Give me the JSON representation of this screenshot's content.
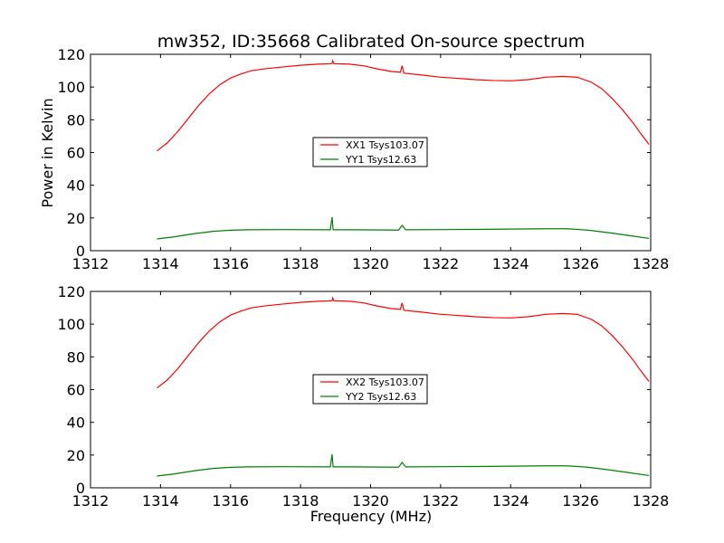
{
  "title": "mw352, ID:35668 Calibrated On-source spectrum",
  "xlabel": "Frequency (MHz)",
  "ylabel": "Power in Kelvin",
  "colors": {
    "red": "#ff0000",
    "green": "#008000"
  },
  "chart_data": [
    {
      "type": "line",
      "xlim": [
        1312,
        1328
      ],
      "ylim": [
        0,
        120
      ],
      "xticks": [
        "1312",
        "1314",
        "1316",
        "1318",
        "1320",
        "1322",
        "1324",
        "1326",
        "1328"
      ],
      "yticks": [
        "0",
        "20",
        "40",
        "60",
        "80",
        "100",
        "120"
      ],
      "legend_position": "center",
      "series": [
        {
          "name": "XX1 Tsys103.07",
          "color": "red",
          "points": [
            [
              1313.9,
              61
            ],
            [
              1314.2,
              66
            ],
            [
              1314.5,
              73
            ],
            [
              1314.8,
              81
            ],
            [
              1315.1,
              89
            ],
            [
              1315.4,
              96
            ],
            [
              1315.7,
              101.5
            ],
            [
              1316.0,
              105.5
            ],
            [
              1316.3,
              108
            ],
            [
              1316.6,
              110
            ],
            [
              1317.0,
              111.2
            ],
            [
              1317.5,
              112.3
            ],
            [
              1318.0,
              113.3
            ],
            [
              1318.5,
              114
            ],
            [
              1318.9,
              114.3
            ],
            [
              1318.92,
              116
            ],
            [
              1318.95,
              114.3
            ],
            [
              1319.4,
              114
            ],
            [
              1319.8,
              113
            ],
            [
              1320.2,
              111
            ],
            [
              1320.6,
              109.5
            ],
            [
              1320.85,
              109
            ],
            [
              1320.9,
              113
            ],
            [
              1320.95,
              108.5
            ],
            [
              1321.4,
              107.5
            ],
            [
              1322.0,
              106
            ],
            [
              1322.5,
              105.3
            ],
            [
              1323.0,
              104.5
            ],
            [
              1323.5,
              104
            ],
            [
              1324.0,
              103.8
            ],
            [
              1324.5,
              104.5
            ],
            [
              1325.0,
              106
            ],
            [
              1325.5,
              106.5
            ],
            [
              1325.9,
              106
            ],
            [
              1326.3,
              103
            ],
            [
              1326.6,
              99
            ],
            [
              1326.9,
              93
            ],
            [
              1327.2,
              86
            ],
            [
              1327.5,
              78
            ],
            [
              1327.7,
              72
            ],
            [
              1327.95,
              65
            ]
          ]
        },
        {
          "name": "YY1 Tsys12.63",
          "color": "green",
          "points": [
            [
              1313.9,
              7.2
            ],
            [
              1314.4,
              8.5
            ],
            [
              1315.0,
              10.5
            ],
            [
              1315.5,
              11.8
            ],
            [
              1316.0,
              12.5
            ],
            [
              1316.5,
              12.8
            ],
            [
              1317.5,
              12.9
            ],
            [
              1318.85,
              12.8
            ],
            [
              1318.9,
              20.5
            ],
            [
              1318.93,
              12.8
            ],
            [
              1319.5,
              12.8
            ],
            [
              1320.8,
              12.6
            ],
            [
              1320.9,
              15.5
            ],
            [
              1321.0,
              12.8
            ],
            [
              1322.0,
              12.9
            ],
            [
              1323.0,
              13
            ],
            [
              1324.0,
              13.2
            ],
            [
              1325.0,
              13.4
            ],
            [
              1325.6,
              13.4
            ],
            [
              1326.2,
              12.6
            ],
            [
              1326.8,
              11
            ],
            [
              1327.4,
              9.2
            ],
            [
              1327.95,
              7.5
            ]
          ]
        }
      ]
    },
    {
      "type": "line",
      "xlim": [
        1312,
        1328
      ],
      "ylim": [
        0,
        120
      ],
      "xticks": [
        "1312",
        "1314",
        "1316",
        "1318",
        "1320",
        "1322",
        "1324",
        "1326",
        "1328"
      ],
      "yticks": [
        "0",
        "20",
        "40",
        "60",
        "80",
        "100",
        "120"
      ],
      "legend_position": "center",
      "series": [
        {
          "name": "XX2 Tsys103.07",
          "color": "red",
          "points": [
            [
              1313.9,
              61
            ],
            [
              1314.2,
              66
            ],
            [
              1314.5,
              73
            ],
            [
              1314.8,
              81
            ],
            [
              1315.1,
              89
            ],
            [
              1315.4,
              96
            ],
            [
              1315.7,
              101.5
            ],
            [
              1316.0,
              105.5
            ],
            [
              1316.3,
              108
            ],
            [
              1316.6,
              110
            ],
            [
              1317.0,
              111.2
            ],
            [
              1317.5,
              112.3
            ],
            [
              1318.0,
              113.3
            ],
            [
              1318.5,
              114
            ],
            [
              1318.9,
              114.3
            ],
            [
              1318.92,
              116
            ],
            [
              1318.95,
              114.3
            ],
            [
              1319.4,
              114
            ],
            [
              1319.8,
              113
            ],
            [
              1320.2,
              111
            ],
            [
              1320.6,
              109.5
            ],
            [
              1320.85,
              109
            ],
            [
              1320.9,
              113
            ],
            [
              1320.95,
              108.5
            ],
            [
              1321.4,
              107.5
            ],
            [
              1322.0,
              106
            ],
            [
              1322.5,
              105.3
            ],
            [
              1323.0,
              104.5
            ],
            [
              1323.5,
              104
            ],
            [
              1324.0,
              103.8
            ],
            [
              1324.5,
              104.5
            ],
            [
              1325.0,
              106
            ],
            [
              1325.5,
              106.5
            ],
            [
              1325.9,
              106
            ],
            [
              1326.3,
              103
            ],
            [
              1326.6,
              99
            ],
            [
              1326.9,
              93
            ],
            [
              1327.2,
              86
            ],
            [
              1327.5,
              78
            ],
            [
              1327.7,
              72
            ],
            [
              1327.95,
              65
            ]
          ]
        },
        {
          "name": "YY2 Tsys12.63",
          "color": "green",
          "points": [
            [
              1313.9,
              7.2
            ],
            [
              1314.4,
              8.5
            ],
            [
              1315.0,
              10.5
            ],
            [
              1315.5,
              11.8
            ],
            [
              1316.0,
              12.5
            ],
            [
              1316.5,
              12.8
            ],
            [
              1317.5,
              12.9
            ],
            [
              1318.85,
              12.8
            ],
            [
              1318.9,
              20.5
            ],
            [
              1318.93,
              12.8
            ],
            [
              1319.5,
              12.8
            ],
            [
              1320.8,
              12.6
            ],
            [
              1320.9,
              15.5
            ],
            [
              1321.0,
              12.8
            ],
            [
              1322.0,
              12.9
            ],
            [
              1323.0,
              13
            ],
            [
              1324.0,
              13.2
            ],
            [
              1325.0,
              13.4
            ],
            [
              1325.6,
              13.4
            ],
            [
              1326.2,
              12.6
            ],
            [
              1326.8,
              11
            ],
            [
              1327.4,
              9.2
            ],
            [
              1327.95,
              7.5
            ]
          ]
        }
      ]
    }
  ]
}
